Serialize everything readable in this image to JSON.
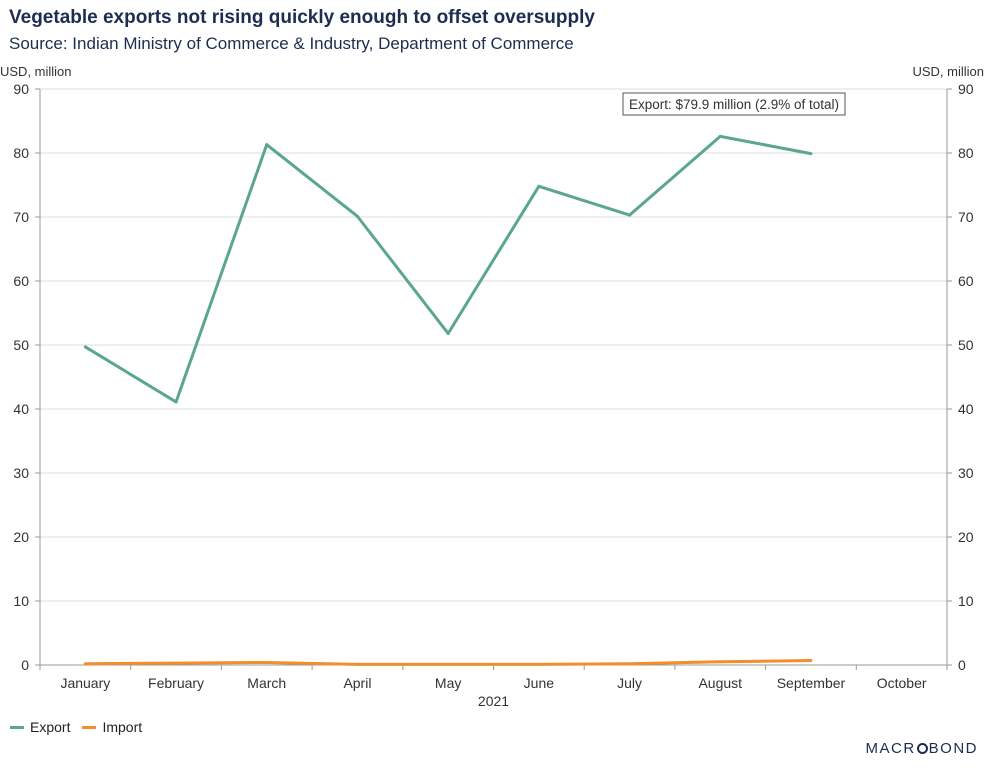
{
  "chart_data": {
    "type": "line",
    "title": "Vegetable exports not rising quickly enough to offset oversupply",
    "subtitle": "Source: Indian Ministry of Commerce & Industry, Department of Commerce",
    "ylabel_left": "USD, million",
    "ylabel_right": "USD, million",
    "xlabel": "2021",
    "ylim": [
      0,
      90
    ],
    "yticks": [
      0,
      10,
      20,
      30,
      40,
      50,
      60,
      70,
      80,
      90
    ],
    "categories": [
      "January",
      "February",
      "March",
      "April",
      "May",
      "June",
      "July",
      "August",
      "September",
      "October"
    ],
    "series": [
      {
        "name": "Export",
        "color": "#5ba68e",
        "values": [
          49.7,
          41.1,
          81.3,
          70.1,
          51.8,
          74.8,
          70.3,
          82.6,
          79.9,
          null
        ]
      },
      {
        "name": "Import",
        "color": "#f28e2b",
        "values": [
          0.2,
          0.3,
          0.4,
          0.1,
          0.1,
          0.1,
          0.2,
          0.5,
          0.7,
          null
        ]
      }
    ],
    "annotation": "Export: $79.9 million (2.9% of total)",
    "grid": true,
    "legend_position": "bottom-left"
  },
  "branding": {
    "logo_before": "MACR",
    "logo_after": "BOND"
  }
}
